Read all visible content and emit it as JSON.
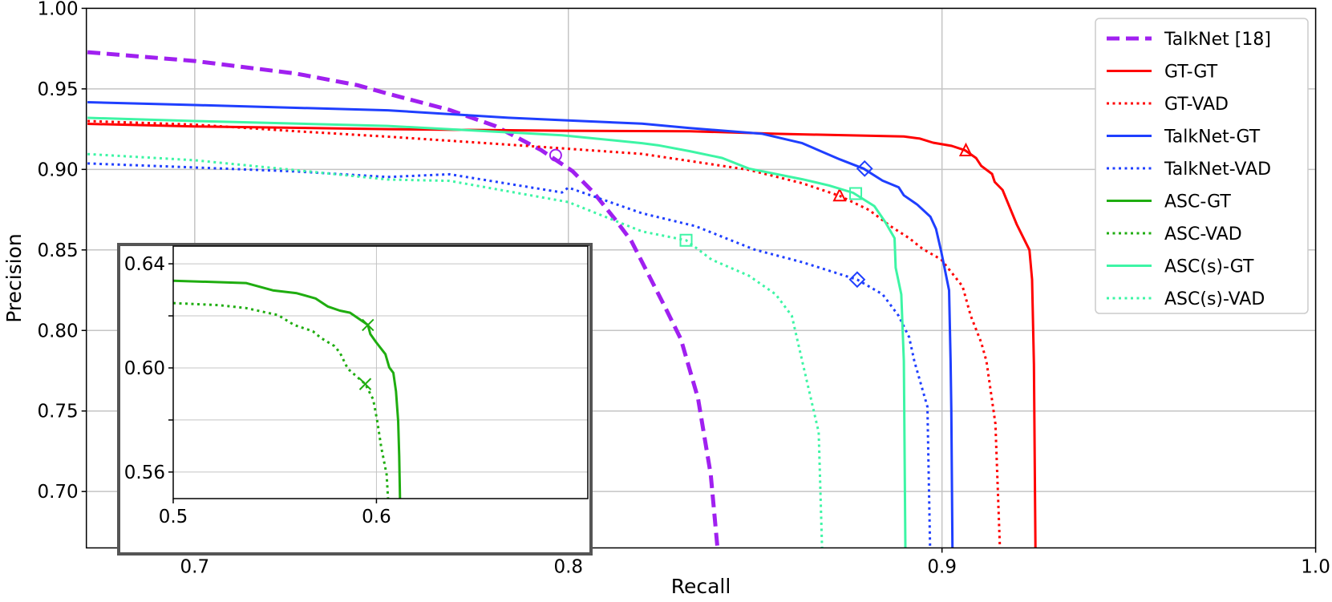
{
  "chart_data": [
    {
      "type": "line",
      "title": "",
      "xlabel": "Recall",
      "ylabel": "Precision",
      "xlim": [
        0.671,
        1.0
      ],
      "ylim": [
        0.665,
        1.0
      ],
      "xticks": [
        0.7,
        0.8,
        0.9,
        1.0
      ],
      "xtick_labels": [
        "0.7",
        "0.8",
        "0.9",
        "1.0"
      ],
      "yticks": [
        0.7,
        0.75,
        0.8,
        0.85,
        0.9,
        0.95,
        1.0
      ],
      "ytick_labels": [
        "0.70",
        "0.75",
        "0.80",
        "0.85",
        "0.90",
        "0.95",
        "1.00"
      ],
      "grid": true,
      "legend_position": "top-right",
      "legend": [
        {
          "name": "TalkNet [18]",
          "color": "#a020f0",
          "style": "dashed"
        },
        {
          "name": "GT-GT",
          "color": "#ff0000",
          "style": "solid"
        },
        {
          "name": "GT-VAD",
          "color": "#ff0000",
          "style": "dotted"
        },
        {
          "name": "TalkNet-GT",
          "color": "#1f3fff",
          "style": "solid"
        },
        {
          "name": "TalkNet-VAD",
          "color": "#1f3fff",
          "style": "dotted"
        },
        {
          "name": "ASC-GT",
          "color": "#1fad10",
          "style": "solid"
        },
        {
          "name": "ASC-VAD",
          "color": "#1fad10",
          "style": "dotted"
        },
        {
          "name": "ASC(s)-GT",
          "color": "#3df5a5",
          "style": "solid"
        },
        {
          "name": "ASC(s)-VAD",
          "color": "#3df5a5",
          "style": "dotted"
        }
      ],
      "series": [
        {
          "name": "TalkNet [18]",
          "color": "#a020f0",
          "style": "dashed",
          "marker": "circle",
          "marker_point": [
            0.7966,
            0.9088
          ],
          "points": [
            [
              0.6713,
              0.9728
            ],
            [
              0.7,
              0.9673
            ],
            [
              0.7271,
              0.9595
            ],
            [
              0.7435,
              0.9523
            ],
            [
              0.7517,
              0.947
            ],
            [
              0.7681,
              0.937
            ],
            [
              0.7804,
              0.927
            ],
            [
              0.7927,
              0.912
            ],
            [
              0.8011,
              0.8989
            ],
            [
              0.8068,
              0.8856
            ],
            [
              0.8125,
              0.869
            ],
            [
              0.8168,
              0.8558
            ],
            [
              0.8256,
              0.8158
            ],
            [
              0.8301,
              0.7947
            ],
            [
              0.8347,
              0.7579
            ],
            [
              0.8381,
              0.7105
            ],
            [
              0.8399,
              0.665
            ]
          ]
        },
        {
          "name": "GT-GT",
          "color": "#ff0000",
          "style": "solid",
          "marker": "triangle",
          "marker_point": [
            0.9064,
            0.9116
          ],
          "points": [
            [
              0.6713,
              0.9283
            ],
            [
              0.7,
              0.9267
            ],
            [
              0.7517,
              0.925
            ],
            [
              0.7983,
              0.924
            ],
            [
              0.8325,
              0.9237
            ],
            [
              0.8555,
              0.9221
            ],
            [
              0.8898,
              0.9204
            ],
            [
              0.8941,
              0.9191
            ],
            [
              0.8976,
              0.9166
            ],
            [
              0.9026,
              0.9146
            ],
            [
              0.9062,
              0.9118
            ],
            [
              0.9091,
              0.9071
            ],
            [
              0.9105,
              0.9022
            ],
            [
              0.9134,
              0.8972
            ],
            [
              0.9141,
              0.8922
            ],
            [
              0.9162,
              0.8872
            ],
            [
              0.92,
              0.8658
            ],
            [
              0.9234,
              0.85
            ],
            [
              0.9241,
              0.8316
            ],
            [
              0.9246,
              0.779
            ],
            [
              0.925,
              0.665
            ]
          ]
        },
        {
          "name": "GT-VAD",
          "color": "#ff0000",
          "style": "dotted",
          "marker": "triangle",
          "marker_point": [
            0.8726,
            0.8836
          ],
          "points": [
            [
              0.6713,
              0.93
            ],
            [
              0.7,
              0.9278
            ],
            [
              0.7271,
              0.9237
            ],
            [
              0.7517,
              0.9203
            ],
            [
              0.7845,
              0.9153
            ],
            [
              0.8,
              0.9128
            ],
            [
              0.8197,
              0.9096
            ],
            [
              0.834,
              0.9047
            ],
            [
              0.8483,
              0.8997
            ],
            [
              0.8626,
              0.8914
            ],
            [
              0.8726,
              0.8836
            ],
            [
              0.8805,
              0.8748
            ],
            [
              0.8862,
              0.8648
            ],
            [
              0.8912,
              0.8573
            ],
            [
              0.8948,
              0.8507
            ],
            [
              0.8998,
              0.844
            ],
            [
              0.9055,
              0.8274
            ],
            [
              0.9077,
              0.8091
            ],
            [
              0.9105,
              0.7925
            ],
            [
              0.9119,
              0.7809
            ],
            [
              0.9143,
              0.742
            ],
            [
              0.9155,
              0.665
            ]
          ]
        },
        {
          "name": "TalkNet-GT",
          "color": "#1f3fff",
          "style": "solid",
          "marker": "diamond",
          "marker_point": [
            0.8793,
            0.9005
          ],
          "points": [
            [
              0.6713,
              0.9417
            ],
            [
              0.7,
              0.94
            ],
            [
              0.7517,
              0.9367
            ],
            [
              0.7845,
              0.932
            ],
            [
              0.8,
              0.9304
            ],
            [
              0.8197,
              0.9284
            ],
            [
              0.8325,
              0.9257
            ],
            [
              0.8519,
              0.9221
            ],
            [
              0.8626,
              0.9163
            ],
            [
              0.8726,
              0.9063
            ],
            [
              0.879,
              0.9005
            ],
            [
              0.8841,
              0.893
            ],
            [
              0.8884,
              0.8889
            ],
            [
              0.8898,
              0.8839
            ],
            [
              0.8934,
              0.8781
            ],
            [
              0.8969,
              0.8706
            ],
            [
              0.8984,
              0.8631
            ],
            [
              0.8998,
              0.849
            ],
            [
              0.9019,
              0.8249
            ],
            [
              0.9023,
              0.7809
            ],
            [
              0.9025,
              0.75
            ],
            [
              0.9028,
              0.665
            ]
          ]
        },
        {
          "name": "TalkNet-VAD",
          "color": "#1f3fff",
          "style": "dotted",
          "marker": "diamond",
          "marker_point": [
            0.8773,
            0.8316
          ],
          "points": [
            [
              0.6713,
              0.9037
            ],
            [
              0.7,
              0.9012
            ],
            [
              0.7271,
              0.8987
            ],
            [
              0.7517,
              0.8953
            ],
            [
              0.7682,
              0.897
            ],
            [
              0.7983,
              0.8857
            ],
            [
              0.8,
              0.8887
            ],
            [
              0.8197,
              0.8728
            ],
            [
              0.834,
              0.8648
            ],
            [
              0.8497,
              0.8503
            ],
            [
              0.8626,
              0.8424
            ],
            [
              0.8773,
              0.8316
            ],
            [
              0.8841,
              0.8224
            ],
            [
              0.8884,
              0.8091
            ],
            [
              0.8912,
              0.7958
            ],
            [
              0.8926,
              0.7809
            ],
            [
              0.8961,
              0.7526
            ],
            [
              0.8968,
              0.665
            ]
          ]
        },
        {
          "name": "ASC(s)-GT",
          "color": "#3df5a5",
          "style": "solid",
          "marker": "square",
          "marker_point": [
            0.8769,
            0.885
          ],
          "points": [
            [
              0.6713,
              0.932
            ],
            [
              0.7,
              0.93
            ],
            [
              0.7517,
              0.927
            ],
            [
              0.7983,
              0.9212
            ],
            [
              0.8,
              0.9208
            ],
            [
              0.8197,
              0.9163
            ],
            [
              0.824,
              0.915
            ],
            [
              0.8325,
              0.9113
            ],
            [
              0.8412,
              0.9071
            ],
            [
              0.8483,
              0.9005
            ],
            [
              0.8626,
              0.8939
            ],
            [
              0.8698,
              0.89
            ],
            [
              0.8762,
              0.8855
            ],
            [
              0.8819,
              0.8772
            ],
            [
              0.8848,
              0.8673
            ],
            [
              0.8873,
              0.8573
            ],
            [
              0.8876,
              0.839
            ],
            [
              0.8891,
              0.8224
            ],
            [
              0.8898,
              0.7809
            ],
            [
              0.8902,
              0.665
            ]
          ]
        },
        {
          "name": "ASC(s)-VAD",
          "color": "#3df5a5",
          "style": "dotted",
          "marker": "square",
          "marker_point": [
            0.8315,
            0.856
          ],
          "points": [
            [
              0.6713,
              0.9095
            ],
            [
              0.7,
              0.9057
            ],
            [
              0.7271,
              0.8995
            ],
            [
              0.7517,
              0.8937
            ],
            [
              0.7682,
              0.8929
            ],
            [
              0.8,
              0.8797
            ],
            [
              0.8197,
              0.8615
            ],
            [
              0.8315,
              0.856
            ],
            [
              0.8383,
              0.844
            ],
            [
              0.8483,
              0.834
            ],
            [
              0.8555,
              0.8224
            ],
            [
              0.8598,
              0.8091
            ],
            [
              0.8626,
              0.7809
            ],
            [
              0.867,
              0.7368
            ],
            [
              0.8679,
              0.665
            ]
          ]
        }
      ]
    },
    {
      "type": "line",
      "title": "",
      "xlabel": "",
      "ylabel": "",
      "xlim": [
        0.5,
        0.704
      ],
      "ylim": [
        0.5498,
        0.6468
      ],
      "xticks": [
        0.5,
        0.6
      ],
      "xtick_labels": [
        "0.5",
        "0.6"
      ],
      "yticks": [
        0.56,
        0.58,
        0.6,
        0.62,
        0.64
      ],
      "ytick_labels": [
        "0.56",
        "",
        "0.60",
        "",
        "0.64"
      ],
      "grid": true,
      "series": [
        {
          "name": "ASC-GT",
          "color": "#1fad10",
          "style": "solid",
          "marker": "x",
          "marker_point": [
            0.5958,
            0.6165
          ],
          "points": [
            [
              0.5,
              0.6335
            ],
            [
              0.5358,
              0.6326
            ],
            [
              0.549,
              0.6298
            ],
            [
              0.5608,
              0.6287
            ],
            [
              0.57,
              0.6267
            ],
            [
              0.576,
              0.6236
            ],
            [
              0.582,
              0.622
            ],
            [
              0.587,
              0.6212
            ],
            [
              0.5958,
              0.6165
            ],
            [
              0.597,
              0.613
            ],
            [
              0.5997,
              0.61
            ],
            [
              0.6044,
              0.6053
            ],
            [
              0.6063,
              0.6002
            ],
            [
              0.6083,
              0.5981
            ],
            [
              0.6096,
              0.591
            ],
            [
              0.6107,
              0.5796
            ],
            [
              0.6112,
              0.5663
            ],
            [
              0.6116,
              0.5498
            ]
          ]
        },
        {
          "name": "ASC-VAD",
          "color": "#1fad10",
          "style": "dotted",
          "marker": "x",
          "marker_point": [
            0.5945,
            0.5938
          ],
          "points": [
            [
              0.5,
              0.6249
            ],
            [
              0.5226,
              0.6241
            ],
            [
              0.5358,
              0.623
            ],
            [
              0.5516,
              0.6203
            ],
            [
              0.5595,
              0.6165
            ],
            [
              0.5687,
              0.6141
            ],
            [
              0.5727,
              0.6115
            ],
            [
              0.5793,
              0.6084
            ],
            [
              0.582,
              0.6059
            ],
            [
              0.5859,
              0.5997
            ],
            [
              0.5945,
              0.5938
            ],
            [
              0.5984,
              0.5879
            ],
            [
              0.6004,
              0.5796
            ],
            [
              0.6024,
              0.5694
            ],
            [
              0.605,
              0.5591
            ],
            [
              0.6057,
              0.5498
            ]
          ]
        }
      ]
    }
  ]
}
